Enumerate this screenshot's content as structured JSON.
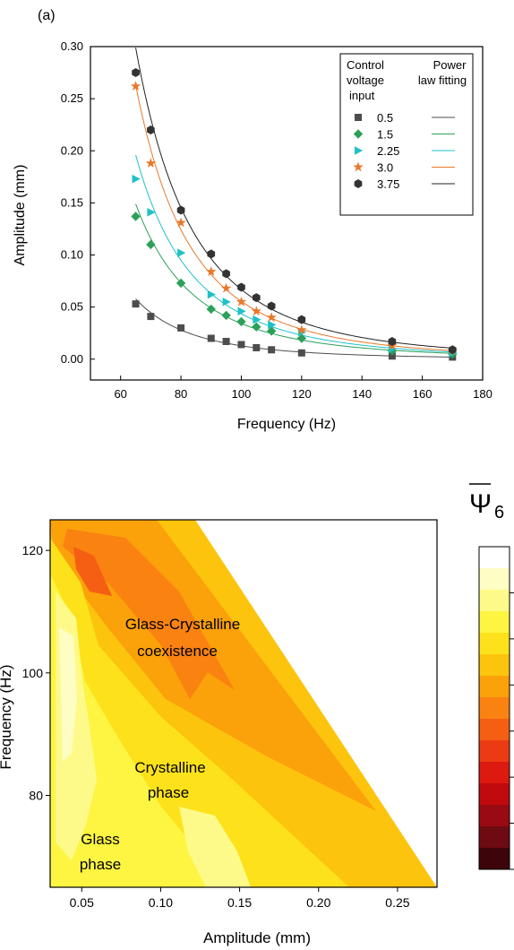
{
  "panel_label": "(a)",
  "chart_data": [
    {
      "type": "scatter",
      "title": "",
      "xlabel": "Frequency (Hz)",
      "ylabel": "Amplitude (mm)",
      "xlim": [
        50,
        180
      ],
      "ylim": [
        -0.02,
        0.3
      ],
      "xticks": [
        60,
        80,
        100,
        120,
        140,
        160,
        180
      ],
      "yticks": [
        0.0,
        0.05,
        0.1,
        0.15,
        0.2,
        0.25,
        0.3
      ],
      "xtick_labels": [
        "60",
        "80",
        "100",
        "120",
        "140",
        "160",
        "180"
      ],
      "ytick_labels": [
        "0.00",
        "0.05",
        "0.10",
        "0.15",
        "0.20",
        "0.25",
        "0.30"
      ],
      "grid": false,
      "legend": {
        "placement": "top-right",
        "header_left": [
          "Control",
          "voltage",
          "input"
        ],
        "header_right": [
          "Power",
          "law fitting"
        ]
      },
      "x": [
        65,
        70,
        80,
        90,
        95,
        100,
        105,
        110,
        120,
        150,
        170
      ],
      "series": [
        {
          "name": "0.5",
          "marker": "square",
          "color": "#4d4d4d",
          "fit_color": "#4d4d4d",
          "values": [
            0.053,
            0.041,
            0.03,
            0.02,
            0.017,
            0.014,
            0.011,
            0.009,
            0.006,
            0.003,
            0.002
          ]
        },
        {
          "name": "1.5",
          "marker": "diamond",
          "color": "#2ca05a",
          "fit_color": "#2ca05a",
          "values": [
            0.137,
            0.11,
            0.073,
            0.048,
            0.042,
            0.036,
            0.031,
            0.027,
            0.02,
            0.008,
            0.005
          ]
        },
        {
          "name": "2.25",
          "marker": "triangle-right",
          "color": "#1fc1c8",
          "fit_color": "#1fc1c8",
          "values": [
            0.173,
            0.141,
            0.102,
            0.062,
            0.055,
            0.046,
            0.038,
            0.033,
            0.026,
            0.01,
            0.006
          ]
        },
        {
          "name": "3.0",
          "marker": "star",
          "color": "#e8782a",
          "fit_color": "#e8782a",
          "values": [
            0.262,
            0.188,
            0.131,
            0.084,
            0.068,
            0.055,
            0.046,
            0.04,
            0.028,
            0.013,
            0.008
          ]
        },
        {
          "name": "3.75",
          "marker": "hexagon",
          "color": "#333333",
          "fit_color": "#222222",
          "values": [
            0.275,
            0.22,
            0.143,
            0.101,
            0.082,
            0.069,
            0.059,
            0.051,
            0.038,
            0.017,
            0.009
          ]
        }
      ]
    },
    {
      "type": "heatmap",
      "title": "",
      "colorbar_label": "Ψ",
      "colorbar_subscript": "6",
      "xlabel": "Amplitude (mm)",
      "ylabel": "Frequency (Hz)",
      "xlim": [
        0.03,
        0.275
      ],
      "ylim": [
        65,
        125
      ],
      "xticks": [
        0.05,
        0.1,
        0.15,
        0.2,
        0.25
      ],
      "yticks": [
        80,
        100,
        120
      ],
      "xtick_labels": [
        "0.05",
        "0.10",
        "0.15",
        "0.20",
        "0.25"
      ],
      "ytick_labels": [
        "80",
        "100",
        "120"
      ],
      "annotations": [
        {
          "lines": [
            "Glass-Crystalline",
            "coexistence"
          ],
          "x": 0.12,
          "y": 104
        },
        {
          "lines": [
            "Crystalline",
            "phase"
          ],
          "x": 0.12,
          "y": 84
        },
        {
          "lines": [
            "Glass",
            "phase"
          ],
          "x": 0.06,
          "y": 72
        }
      ],
      "colorbar_colors": [
        "#ffffff",
        "#fefdc4",
        "#fefa8a",
        "#fdf542",
        "#fde21b",
        "#fcc40c",
        "#fba10a",
        "#f98211",
        "#f45f14",
        "#ec3b13",
        "#dc1a10",
        "#c00a0e",
        "#9a0a12",
        "#6e0a11",
        "#3d050a"
      ]
    }
  ]
}
